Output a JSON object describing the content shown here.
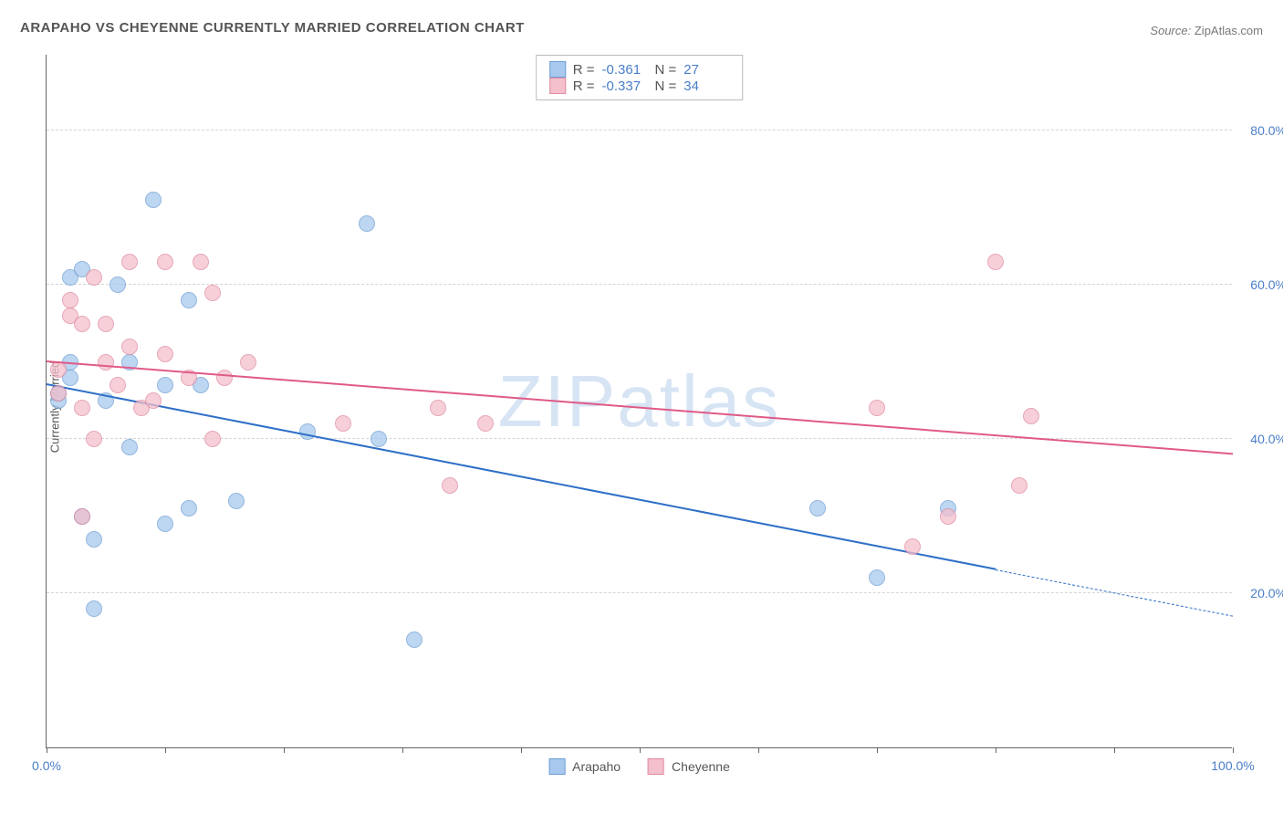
{
  "title": "ARAPAHO VS CHEYENNE CURRENTLY MARRIED CORRELATION CHART",
  "source_label": "Source:",
  "source_value": "ZipAtlas.com",
  "watermark": "ZIPatlas",
  "y_axis_label": "Currently Married",
  "chart": {
    "type": "scatter",
    "xlim": [
      0,
      100
    ],
    "ylim": [
      0,
      90
    ],
    "x_ticks": [
      0,
      10,
      20,
      30,
      40,
      50,
      60,
      70,
      80,
      90,
      100
    ],
    "x_tick_labels_shown": {
      "0": "0.0%",
      "100": "100.0%"
    },
    "y_grid": [
      20,
      40,
      60,
      80
    ],
    "y_tick_labels": {
      "20": "20.0%",
      "40": "40.0%",
      "60": "60.0%",
      "80": "80.0%"
    },
    "background_color": "#ffffff",
    "grid_color": "#d5d5d5",
    "axis_color": "#666666",
    "tick_label_color": "#4a7ec9",
    "marker_radius": 9,
    "series": [
      {
        "name": "Arapaho",
        "fill_color": "#a8c9ed",
        "stroke_color": "#6f9fd6",
        "trend_color": "#2e6fc7",
        "trend_width": 2.5,
        "R": "-0.361",
        "N": "27",
        "trend": {
          "x1": 0,
          "y1": 47,
          "x2": 80,
          "y2": 23,
          "dashed_extension_to_x": 100,
          "dashed_extension_y": 17
        },
        "points": [
          [
            1,
            45
          ],
          [
            1,
            46
          ],
          [
            2,
            48
          ],
          [
            2,
            50
          ],
          [
            2,
            61
          ],
          [
            3,
            62
          ],
          [
            3,
            30
          ],
          [
            4,
            18
          ],
          [
            4,
            27
          ],
          [
            5,
            45
          ],
          [
            6,
            60
          ],
          [
            7,
            39
          ],
          [
            7,
            50
          ],
          [
            9,
            71
          ],
          [
            10,
            29
          ],
          [
            10,
            47
          ],
          [
            12,
            31
          ],
          [
            12,
            58
          ],
          [
            13,
            47
          ],
          [
            16,
            32
          ],
          [
            22,
            41
          ],
          [
            27,
            68
          ],
          [
            28,
            40
          ],
          [
            31,
            14
          ],
          [
            65,
            31
          ],
          [
            70,
            22
          ],
          [
            76,
            31
          ]
        ]
      },
      {
        "name": "Cheyenne",
        "fill_color": "#f3c0cc",
        "stroke_color": "#e18aa1",
        "trend_color": "#e05a87",
        "trend_width": 2.5,
        "R": "-0.337",
        "N": "34",
        "trend": {
          "x1": 0,
          "y1": 50,
          "x2": 100,
          "y2": 38
        },
        "points": [
          [
            1,
            46
          ],
          [
            1,
            49
          ],
          [
            2,
            56
          ],
          [
            2,
            58
          ],
          [
            3,
            30
          ],
          [
            3,
            44
          ],
          [
            3,
            55
          ],
          [
            4,
            40
          ],
          [
            4,
            61
          ],
          [
            5,
            50
          ],
          [
            5,
            55
          ],
          [
            6,
            47
          ],
          [
            7,
            52
          ],
          [
            7,
            63
          ],
          [
            8,
            44
          ],
          [
            9,
            45
          ],
          [
            10,
            51
          ],
          [
            10,
            63
          ],
          [
            12,
            48
          ],
          [
            13,
            63
          ],
          [
            14,
            40
          ],
          [
            14,
            59
          ],
          [
            15,
            48
          ],
          [
            17,
            50
          ],
          [
            25,
            42
          ],
          [
            33,
            44
          ],
          [
            34,
            34
          ],
          [
            70,
            44
          ],
          [
            73,
            26
          ],
          [
            76,
            30
          ],
          [
            80,
            63
          ],
          [
            82,
            34
          ],
          [
            83,
            43
          ],
          [
            37,
            42
          ]
        ]
      }
    ],
    "legend_position": "bottom-center",
    "stats_box_position": "top-center"
  }
}
